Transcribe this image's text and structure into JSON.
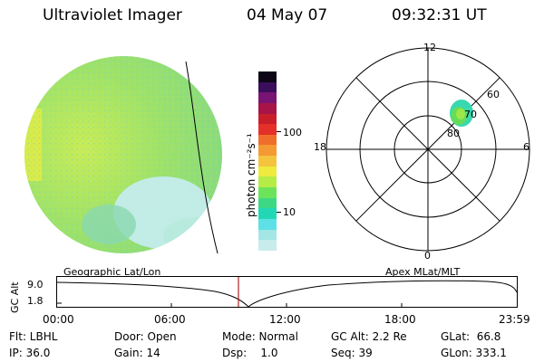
{
  "header": {
    "instrument": "Ultraviolet Imager",
    "date": "04 May 07",
    "time": "09:32:31 UT"
  },
  "colorbar": {
    "unit_label": "photon cm⁻²s⁻¹",
    "ticks": [
      "100",
      "10"
    ],
    "colors": [
      "#c8ecec",
      "#a4e6e6",
      "#5ee0e6",
      "#22d8b4",
      "#3cd884",
      "#6ce45a",
      "#b6ec46",
      "#eeea3e",
      "#f4c43e",
      "#f49a32",
      "#f06e2c",
      "#e43028",
      "#c81e2a",
      "#a81448",
      "#7a1474",
      "#3a0e5a",
      "#0e0616"
    ]
  },
  "polar_plot": {
    "mlt_labels": {
      "top": "12",
      "right": "6",
      "bottom": "0",
      "left": "18"
    },
    "lat_labels": [
      "60",
      "70",
      "80"
    ]
  },
  "orbit": {
    "left_label": "Geographic Lat/Lon",
    "right_label": "Apex MLat/MLT",
    "axis_label": "GC Alt",
    "y_ticks": [
      "9.0",
      "1.8"
    ],
    "time_ticks": [
      "00:00",
      "06:00",
      "12:00",
      "18:00",
      "23:59"
    ]
  },
  "status": {
    "flt": "Flt: LBHL",
    "ip": "IP: 36.0",
    "door": "Door: Open",
    "gain": "Gain: 14",
    "mode": "Mode: Normal",
    "dsp": "Dsp:    1.0",
    "gc_alt": "GC Alt: 2.2 Re",
    "seq": "Seq: 39",
    "glat": "GLat:  66.8",
    "glon": "GLon: 333.1"
  },
  "accent_colors": {
    "marker": "#b02020",
    "globe_base": "#9ee070",
    "globe_pale": "#c4ecec"
  }
}
